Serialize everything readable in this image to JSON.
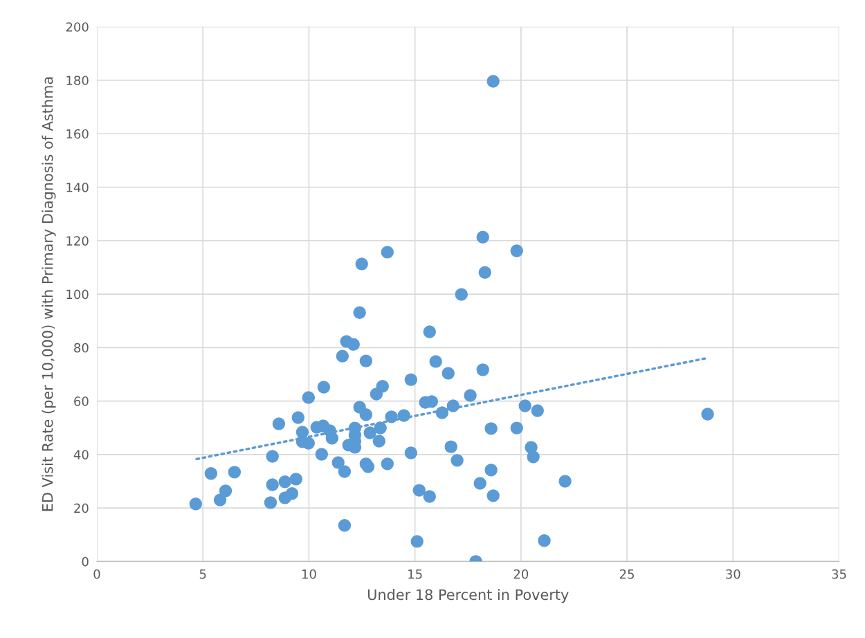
{
  "chart_data": {
    "type": "scatter",
    "xlabel": "Under 18 Percent in Poverty",
    "ylabel": "ED Visit Rate (per 10,000) with Primary Diagnosis of Asthma",
    "xlim": [
      0,
      35
    ],
    "ylim": [
      0,
      200
    ],
    "xticks": [
      0,
      5,
      10,
      15,
      20,
      25,
      30,
      35
    ],
    "yticks": [
      0,
      20,
      40,
      60,
      80,
      100,
      120,
      140,
      160,
      180,
      200
    ],
    "grid": true,
    "legend": false,
    "series": [
      {
        "color": "#5b9bd5",
        "marker": "circle",
        "x": [
          4.66,
          5.38,
          5.81,
          6.07,
          6.49,
          8.19,
          8.28,
          8.28,
          8.58,
          8.87,
          8.87,
          9.2,
          9.39,
          9.49,
          9.69,
          9.69,
          9.98,
          9.98,
          10.37,
          10.67,
          10.99,
          10.6,
          10.7,
          11.09,
          11.38,
          11.58,
          11.68,
          11.68,
          11.77,
          11.87,
          12.1,
          12.17,
          12.17,
          12.17,
          12.17,
          12.39,
          12.39,
          12.49,
          12.69,
          12.69,
          12.69,
          12.79,
          12.88,
          13.18,
          13.31,
          13.37,
          13.47,
          13.7,
          13.7,
          13.89,
          14.48,
          14.81,
          14.81,
          15.1,
          15.2,
          15.49,
          15.69,
          15.79,
          15.98,
          15.69,
          16.28,
          16.57,
          16.7,
          16.8,
          16.99,
          17.19,
          17.61,
          17.87,
          18.07,
          18.2,
          18.2,
          18.3,
          18.59,
          18.59,
          18.69,
          18.69,
          19.8,
          19.8,
          20.19,
          20.48,
          20.58,
          20.78,
          21.1,
          22.08,
          28.8
        ],
        "values": [
          21.5,
          32.9,
          23.0,
          26.4,
          33.4,
          22.0,
          39.3,
          28.7,
          51.5,
          29.8,
          23.8,
          25.4,
          30.8,
          53.8,
          48.4,
          44.8,
          61.3,
          44.2,
          50.2,
          50.7,
          48.9,
          40.1,
          65.2,
          46.1,
          37.0,
          76.8,
          33.6,
          13.5,
          82.3,
          43.5,
          81.2,
          49.9,
          47.3,
          45.0,
          42.7,
          57.7,
          93.1,
          111.3,
          75.0,
          54.9,
          36.5,
          35.4,
          48.1,
          62.6,
          45.0,
          49.9,
          65.5,
          115.7,
          36.5,
          54.1,
          54.6,
          68.0,
          40.6,
          7.5,
          26.6,
          59.5,
          24.3,
          59.8,
          74.8,
          85.9,
          55.6,
          70.4,
          42.9,
          58.2,
          37.8,
          99.9,
          62.1,
          0,
          29.2,
          71.7,
          121.3,
          108.1,
          34.2,
          49.7,
          24.6,
          179.6,
          116.2,
          49.9,
          58.2,
          42.7,
          39.1,
          56.4,
          7.8,
          30.0,
          55.1
        ]
      },
      {
        "type": "line",
        "color": "#5b9bd5",
        "marker": "none",
        "line_style": "dotted",
        "x": [
          4.7,
          28.8
        ],
        "values": [
          38.3,
          76.1
        ]
      }
    ]
  }
}
